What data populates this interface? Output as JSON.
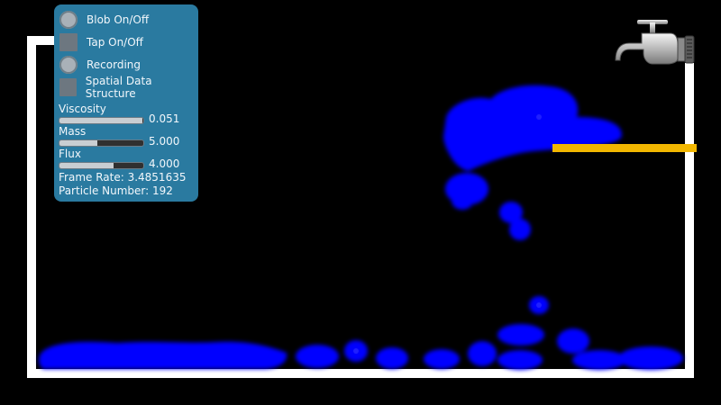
{
  "controls": {
    "toggles": [
      {
        "label": "Blob On/Off",
        "indicator": "round"
      },
      {
        "label": "Tap On/Off",
        "indicator": "square"
      },
      {
        "label": "Recording",
        "indicator": "round"
      },
      {
        "label": "Spatial Data Structure",
        "indicator": "square"
      }
    ],
    "sliders": [
      {
        "label": "Viscosity",
        "value": "0.051",
        "fraction": 0.99
      },
      {
        "label": "Mass",
        "value": "5.000",
        "fraction": 0.45
      },
      {
        "label": "Flux",
        "value": "4.000",
        "fraction": 0.65
      }
    ],
    "frame_rate": "Frame Rate: 3.4851635",
    "particle_number": "Particle Number: 192"
  },
  "colors": {
    "panel": "#2a7aa0",
    "fluid": "#0000ff",
    "bar": "#f2b700",
    "wall": "#ffffff"
  },
  "icons": {
    "tap": "water-tap-icon"
  }
}
